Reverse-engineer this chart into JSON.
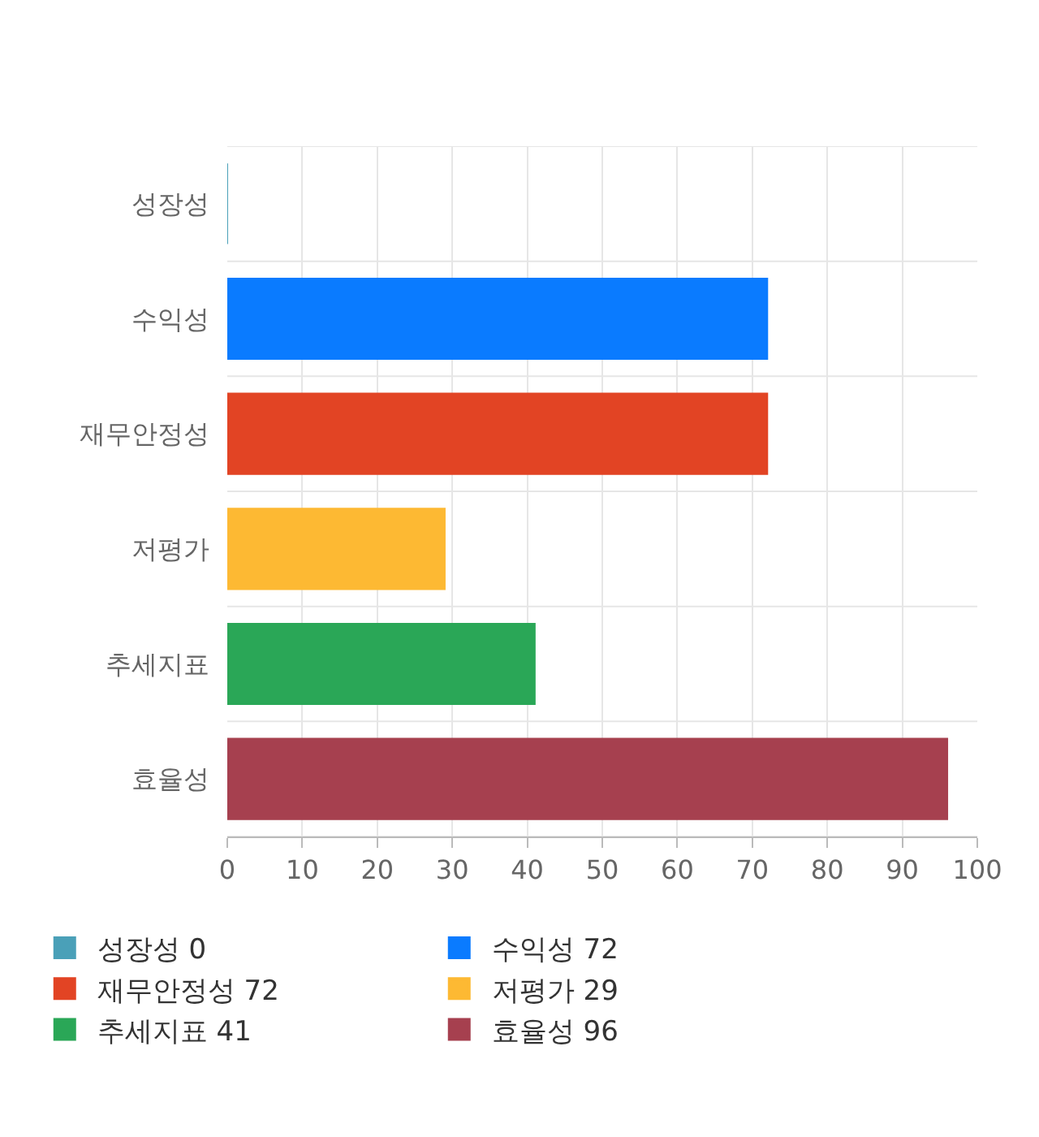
{
  "chart_data": {
    "type": "bar",
    "orientation": "horizontal",
    "categories": [
      "성장성",
      "수익성",
      "재무안정성",
      "저평가",
      "추세지표",
      "효율성"
    ],
    "series": [
      {
        "name": "성장성 0",
        "color": "#4aa0b8",
        "values": [
          0,
          null,
          null,
          null,
          null,
          null
        ]
      },
      {
        "name": "수익성 72",
        "color": "#0a7bff",
        "values": [
          null,
          72,
          null,
          null,
          null,
          null
        ]
      },
      {
        "name": "재무안정성 72",
        "color": "#e24424",
        "values": [
          null,
          null,
          72,
          null,
          null,
          null
        ]
      },
      {
        "name": "저평가 29",
        "color": "#fdb933",
        "values": [
          null,
          null,
          null,
          29,
          null,
          null
        ]
      },
      {
        "name": "추세지표 41",
        "color": "#2aa757",
        "values": [
          null,
          null,
          null,
          null,
          41,
          null
        ]
      },
      {
        "name": "효율성 96",
        "color": "#a6404f",
        "values": [
          null,
          null,
          null,
          null,
          null,
          96
        ]
      }
    ],
    "xlim": [
      0,
      100
    ],
    "xticks": [
      0,
      10,
      20,
      30,
      40,
      50,
      60,
      70,
      80,
      90,
      100
    ],
    "grid": true,
    "legend": "bottom"
  }
}
